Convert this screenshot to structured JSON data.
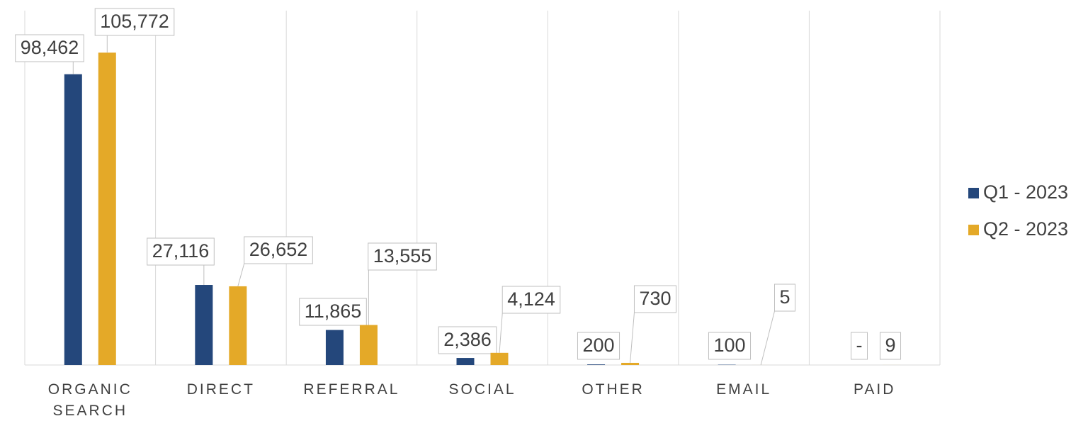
{
  "chart_data": {
    "type": "bar",
    "categories": [
      "ORGANIC SEARCH",
      "DIRECT",
      "REFERRAL",
      "SOCIAL",
      "OTHER",
      "EMAIL",
      "PAID"
    ],
    "series": [
      {
        "name": "Q1 - 2023",
        "color": "#24477b",
        "values": [
          98462,
          27116,
          11865,
          2386,
          200,
          100,
          0
        ],
        "value_labels": [
          "98,462",
          "27,116",
          "11,865",
          "2,386",
          "200",
          "100",
          "-"
        ]
      },
      {
        "name": "Q2 - 2023",
        "color": "#e4a928",
        "values": [
          105772,
          26652,
          13555,
          4124,
          730,
          5,
          9
        ],
        "value_labels": [
          "105,772",
          "26,652",
          "13,555",
          "4,124",
          "730",
          "5",
          "9"
        ]
      }
    ],
    "ylim": [
      0,
      120000
    ],
    "legend": "right"
  }
}
